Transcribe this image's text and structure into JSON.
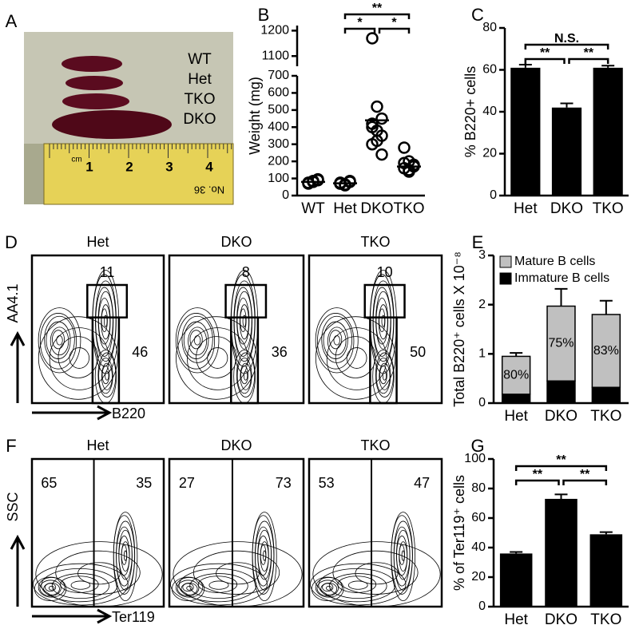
{
  "panel_labels": [
    "A",
    "B",
    "C",
    "D",
    "E",
    "F",
    "G"
  ],
  "photo": {
    "labels": [
      "WT",
      "Het",
      "TKO",
      "DKO"
    ],
    "ruler_unit": "cm",
    "ruler_numbers": [
      "1",
      "2",
      "3",
      "4"
    ],
    "ruler_text": "No. 36"
  },
  "flow_panels": [
    {
      "y_label": "AA4.1",
      "x_label": "B220",
      "plots": [
        {
          "title": "Het",
          "gates": [
            11,
            46
          ]
        },
        {
          "title": "DKO",
          "gates": [
            8,
            36
          ]
        },
        {
          "title": "TKO",
          "gates": [
            10,
            50
          ]
        }
      ]
    },
    {
      "y_label": "SSC",
      "x_label": "Ter119",
      "plots": [
        {
          "title": "Het",
          "gates": [
            65,
            35
          ]
        },
        {
          "title": "DKO",
          "gates": [
            27,
            73
          ]
        },
        {
          "title": "TKO",
          "gates": [
            53,
            47
          ]
        }
      ]
    }
  ],
  "chart_data": [
    {
      "type": "strip",
      "ylabel": "Weight (mg)",
      "categories": [
        "WT",
        "Het",
        "DKO",
        "TKO"
      ],
      "points": [
        [
          70,
          85,
          90,
          75,
          80,
          95
        ],
        [
          70,
          65,
          80,
          75,
          60,
          85,
          70
        ],
        [
          1170,
          520,
          450,
          400,
          380,
          350,
          300,
          320,
          240,
          420
        ],
        [
          280,
          200,
          180,
          160,
          150,
          170,
          190,
          140
        ]
      ],
      "means": [
        80,
        72,
        440,
        170
      ],
      "ylim": [
        0,
        700
      ],
      "yticks": [
        0,
        100,
        200,
        300,
        400,
        500,
        600,
        700
      ],
      "upper_ylim": [
        1060,
        1220
      ],
      "upper_yticks": [
        1100,
        1200
      ],
      "significance": [
        {
          "groups": [
            "Het",
            "TKO"
          ],
          "label": "**"
        },
        {
          "groups": [
            "Het",
            "DKO"
          ],
          "label": "*"
        },
        {
          "groups": [
            "DKO",
            "TKO"
          ],
          "label": "*"
        }
      ]
    },
    {
      "type": "bar",
      "ylabel": "% B220+ cells",
      "categories": [
        "Het",
        "DKO",
        "TKO"
      ],
      "values": [
        61,
        42,
        61
      ],
      "errors": [
        1.5,
        2,
        1
      ],
      "color": "#000000",
      "ylim": [
        0,
        80
      ],
      "yticks": [
        0,
        20,
        40,
        60,
        80
      ],
      "significance": [
        {
          "groups": [
            "Het",
            "TKO"
          ],
          "label": "N.S."
        },
        {
          "groups": [
            "Het",
            "DKO"
          ],
          "label": "**"
        },
        {
          "groups": [
            "DKO",
            "TKO"
          ],
          "label": "**"
        }
      ]
    },
    {
      "type": "stacked_bar",
      "ylabel": "Total B220⁺ cells X 10⁻⁸",
      "categories": [
        "Het",
        "DKO",
        "TKO"
      ],
      "series": [
        {
          "name": "Immature B cells",
          "color": "#000000",
          "values": [
            0.18,
            0.45,
            0.32
          ],
          "errors": [
            0.02,
            0.1,
            0.03
          ]
        },
        {
          "name": "Mature B cells",
          "color": "#c0c0c0",
          "values": [
            0.77,
            1.52,
            1.48
          ],
          "errors": [
            0.07,
            0.35,
            0.28
          ]
        }
      ],
      "mature_share": {
        "values": [
          80,
          75,
          83
        ],
        "value_labels": [
          "80%",
          "75%",
          "83%"
        ]
      },
      "ylim": [
        0,
        3
      ],
      "yticks": [
        0,
        1,
        2,
        3
      ]
    },
    {
      "type": "bar",
      "ylabel": "% of Ter119⁺ cells",
      "categories": [
        "Het",
        "DKO",
        "TKO"
      ],
      "values": [
        36,
        73,
        49
      ],
      "errors": [
        1,
        3,
        1.5
      ],
      "color": "#000000",
      "ylim": [
        0,
        100
      ],
      "yticks": [
        0,
        20,
        40,
        60,
        80,
        100
      ],
      "significance": [
        {
          "groups": [
            "Het",
            "TKO"
          ],
          "label": "**"
        },
        {
          "groups": [
            "Het",
            "DKO"
          ],
          "label": "**"
        },
        {
          "groups": [
            "DKO",
            "TKO"
          ],
          "label": "**"
        }
      ]
    }
  ]
}
